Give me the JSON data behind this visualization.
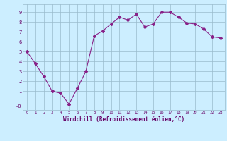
{
  "x": [
    0,
    1,
    2,
    3,
    4,
    5,
    6,
    7,
    8,
    9,
    10,
    11,
    12,
    13,
    14,
    15,
    16,
    17,
    18,
    19,
    20,
    21,
    22,
    23
  ],
  "y": [
    5.0,
    3.8,
    2.5,
    1.0,
    0.8,
    -0.3,
    1.3,
    3.0,
    6.6,
    7.1,
    7.8,
    8.5,
    8.2,
    8.8,
    7.5,
    7.8,
    9.0,
    9.0,
    8.5,
    7.9,
    7.8,
    7.3,
    6.5,
    6.4
  ],
  "line_color": "#882288",
  "marker": "D",
  "marker_size": 2.0,
  "bg_color": "#cceeff",
  "grid_color": "#99bbcc",
  "xlabel": "Windchill (Refroidissement éolien,°C)",
  "ytick_positions": [
    -0.5,
    1,
    2,
    3,
    4,
    5,
    6,
    7,
    8,
    9
  ],
  "ytick_labels": [
    "-0",
    "1",
    "2",
    "3",
    "4",
    "5",
    "6",
    "7",
    "8",
    "9"
  ],
  "xlim": [
    -0.5,
    23.5
  ],
  "ylim": [
    -0.9,
    9.8
  ],
  "label_color": "#660066",
  "tick_color": "#660066"
}
